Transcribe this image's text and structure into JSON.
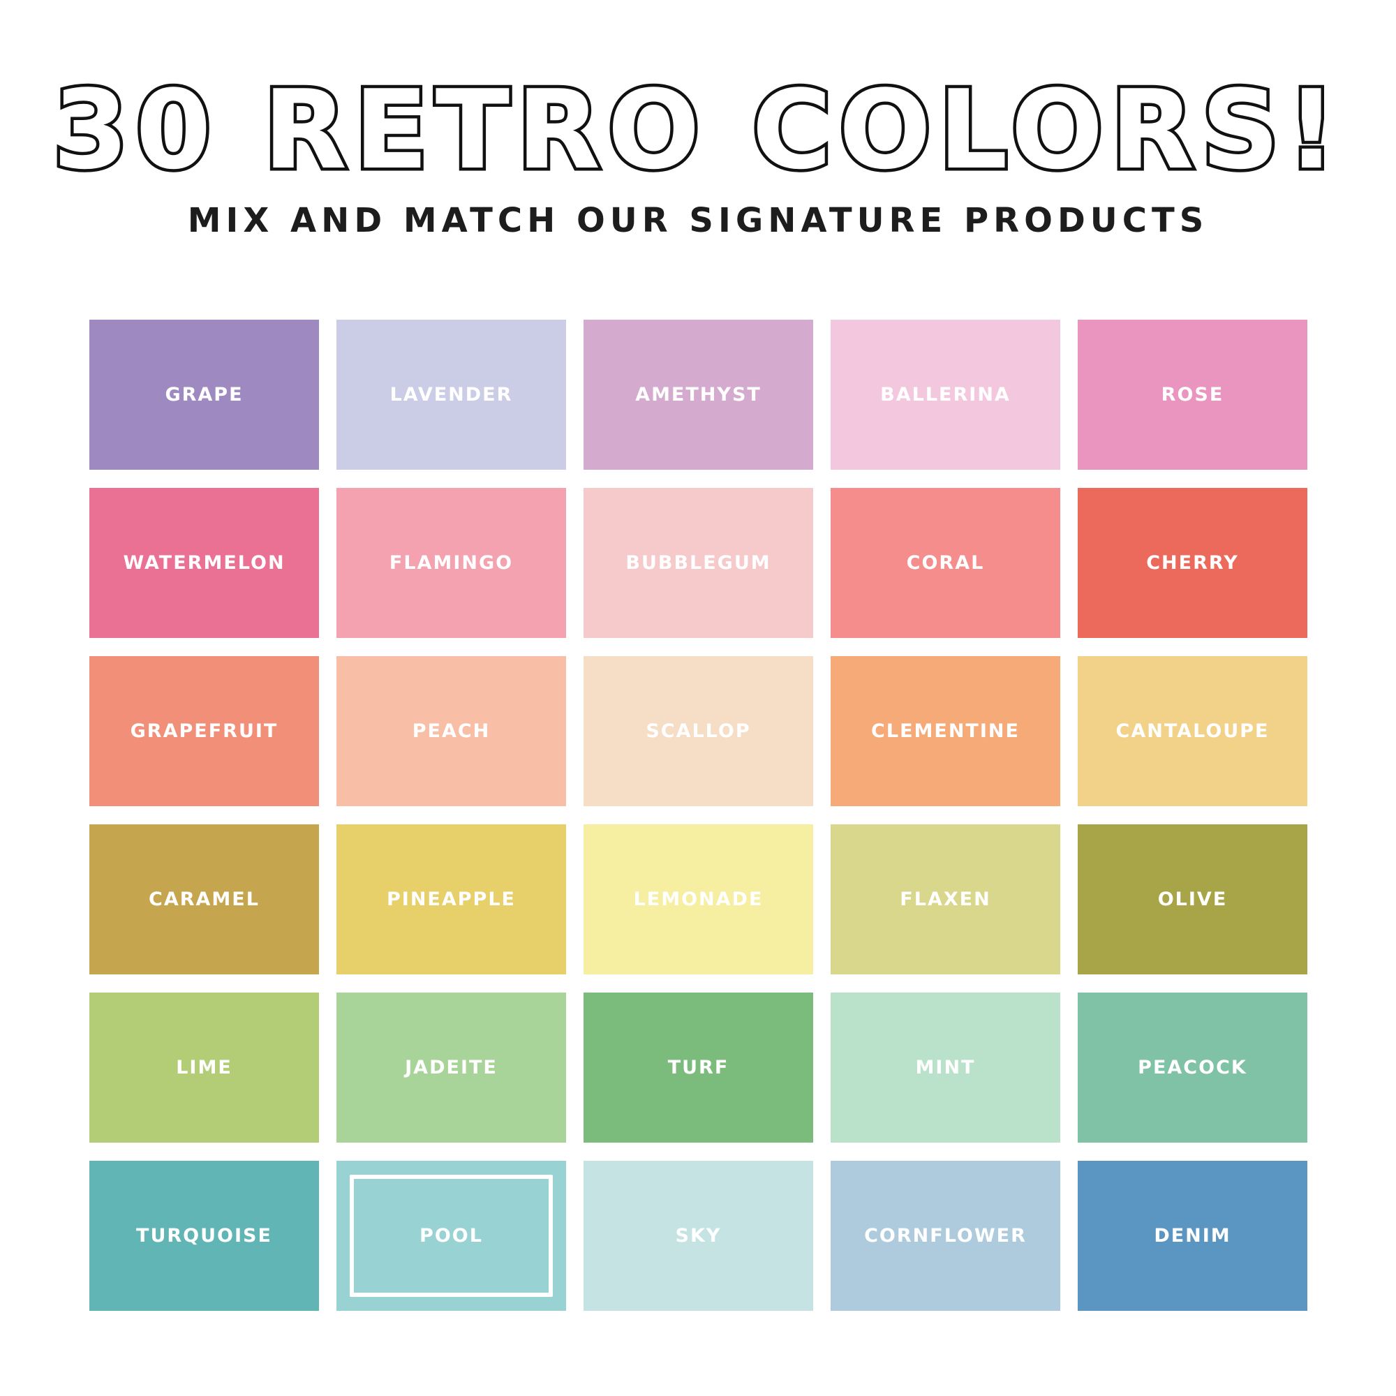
{
  "header": {
    "title": "30 RETRO COLORS!",
    "subtitle": "MIX AND MATCH OUR SIGNATURE PRODUCTS"
  },
  "selected": "POOL",
  "swatches": [
    {
      "name": "GRAPE",
      "color": "#9e8ac0"
    },
    {
      "name": "LAVENDER",
      "color": "#cbcce6"
    },
    {
      "name": "AMETHYST",
      "color": "#d4aace"
    },
    {
      "name": "BALLERINA",
      "color": "#f3c8df"
    },
    {
      "name": "ROSE",
      "color": "#ea95c0"
    },
    {
      "name": "WATERMELON",
      "color": "#ea7094"
    },
    {
      "name": "FLAMINGO",
      "color": "#f5a2b0"
    },
    {
      "name": "BUBBLEGUM",
      "color": "#f6c9cb"
    },
    {
      "name": "CORAL",
      "color": "#f48d8b"
    },
    {
      "name": "CHERRY",
      "color": "#eb6a5c"
    },
    {
      "name": "GRAPEFRUIT",
      "color": "#f28f78"
    },
    {
      "name": "PEACH",
      "color": "#f9bea6"
    },
    {
      "name": "SCALLOP",
      "color": "#f6ddc5"
    },
    {
      "name": "CLEMENTINE",
      "color": "#f5aa78"
    },
    {
      "name": "CANTALOUPE",
      "color": "#f2d188"
    },
    {
      "name": "CARAMEL",
      "color": "#c6a54f"
    },
    {
      "name": "PINEAPPLE",
      "color": "#e7cf69"
    },
    {
      "name": "LEMONADE",
      "color": "#f6eea0"
    },
    {
      "name": "FLAXEN",
      "color": "#d9d78c"
    },
    {
      "name": "OLIVE",
      "color": "#a8a448"
    },
    {
      "name": "LIME",
      "color": "#b3cd76"
    },
    {
      "name": "JADEITE",
      "color": "#a8d49a"
    },
    {
      "name": "TURF",
      "color": "#7bbb7b"
    },
    {
      "name": "MINT",
      "color": "#bae1ca"
    },
    {
      "name": "PEACOCK",
      "color": "#80c2a6"
    },
    {
      "name": "TURQUOISE",
      "color": "#62b5b5"
    },
    {
      "name": "POOL",
      "color": "#98d2d3"
    },
    {
      "name": "SKY",
      "color": "#c4e3e2"
    },
    {
      "name": "CORNFLOWER",
      "color": "#adcbdd"
    },
    {
      "name": "DENIM",
      "color": "#5b95c1"
    }
  ]
}
